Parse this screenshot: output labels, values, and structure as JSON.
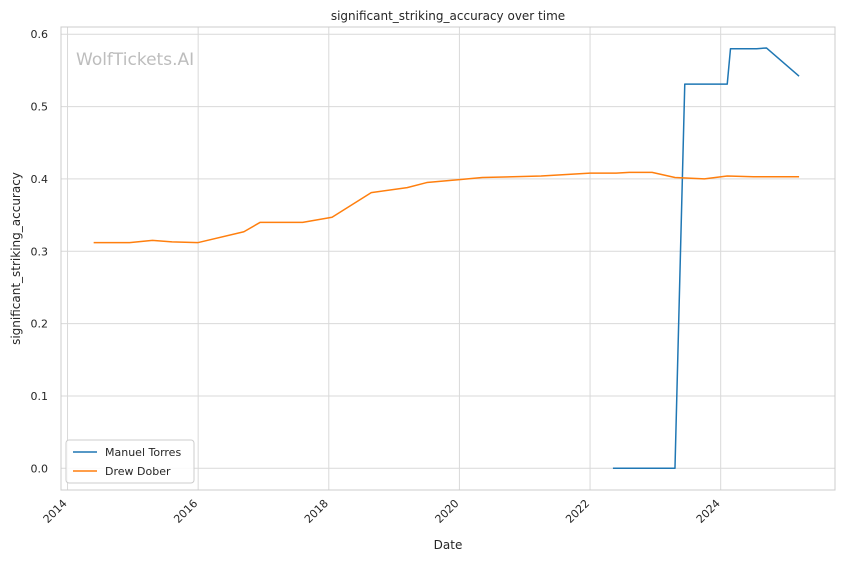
{
  "chart_data": {
    "type": "line",
    "title": "significant_striking_accuracy over time",
    "xlabel": "Date",
    "ylabel": "significant_striking_accuracy",
    "watermark": "WolfTickets.AI",
    "xlim": [
      2013.9,
      2025.75
    ],
    "ylim": [
      -0.03,
      0.61
    ],
    "x_ticks": [
      "2014",
      "2016",
      "2018",
      "2020",
      "2022",
      "2024"
    ],
    "y_ticks": [
      "0.0",
      "0.1",
      "0.2",
      "0.3",
      "0.4",
      "0.5",
      "0.6"
    ],
    "grid": true,
    "legend_position": "lower-left",
    "series": [
      {
        "name": "Manuel Torres",
        "color": "#1f77b4",
        "x": [
          2022.35,
          2023.3,
          2023.45,
          2024.1,
          2024.15,
          2024.55,
          2024.7,
          2025.2
        ],
        "y": [
          0.0,
          0.0,
          0.531,
          0.531,
          0.58,
          0.58,
          0.581,
          0.542
        ]
      },
      {
        "name": "Drew Dober",
        "color": "#ff7f0e",
        "x": [
          2014.4,
          2014.95,
          2015.3,
          2015.6,
          2016.0,
          2016.7,
          2016.95,
          2017.6,
          2018.05,
          2018.65,
          2019.2,
          2019.5,
          2020.0,
          2020.35,
          2021.25,
          2022.0,
          2022.4,
          2022.6,
          2022.95,
          2023.3,
          2023.75,
          2024.1,
          2024.5,
          2025.2
        ],
        "y": [
          0.312,
          0.312,
          0.315,
          0.313,
          0.312,
          0.327,
          0.34,
          0.34,
          0.347,
          0.381,
          0.388,
          0.395,
          0.399,
          0.402,
          0.404,
          0.408,
          0.408,
          0.409,
          0.409,
          0.402,
          0.4,
          0.404,
          0.403,
          0.403
        ]
      }
    ]
  }
}
